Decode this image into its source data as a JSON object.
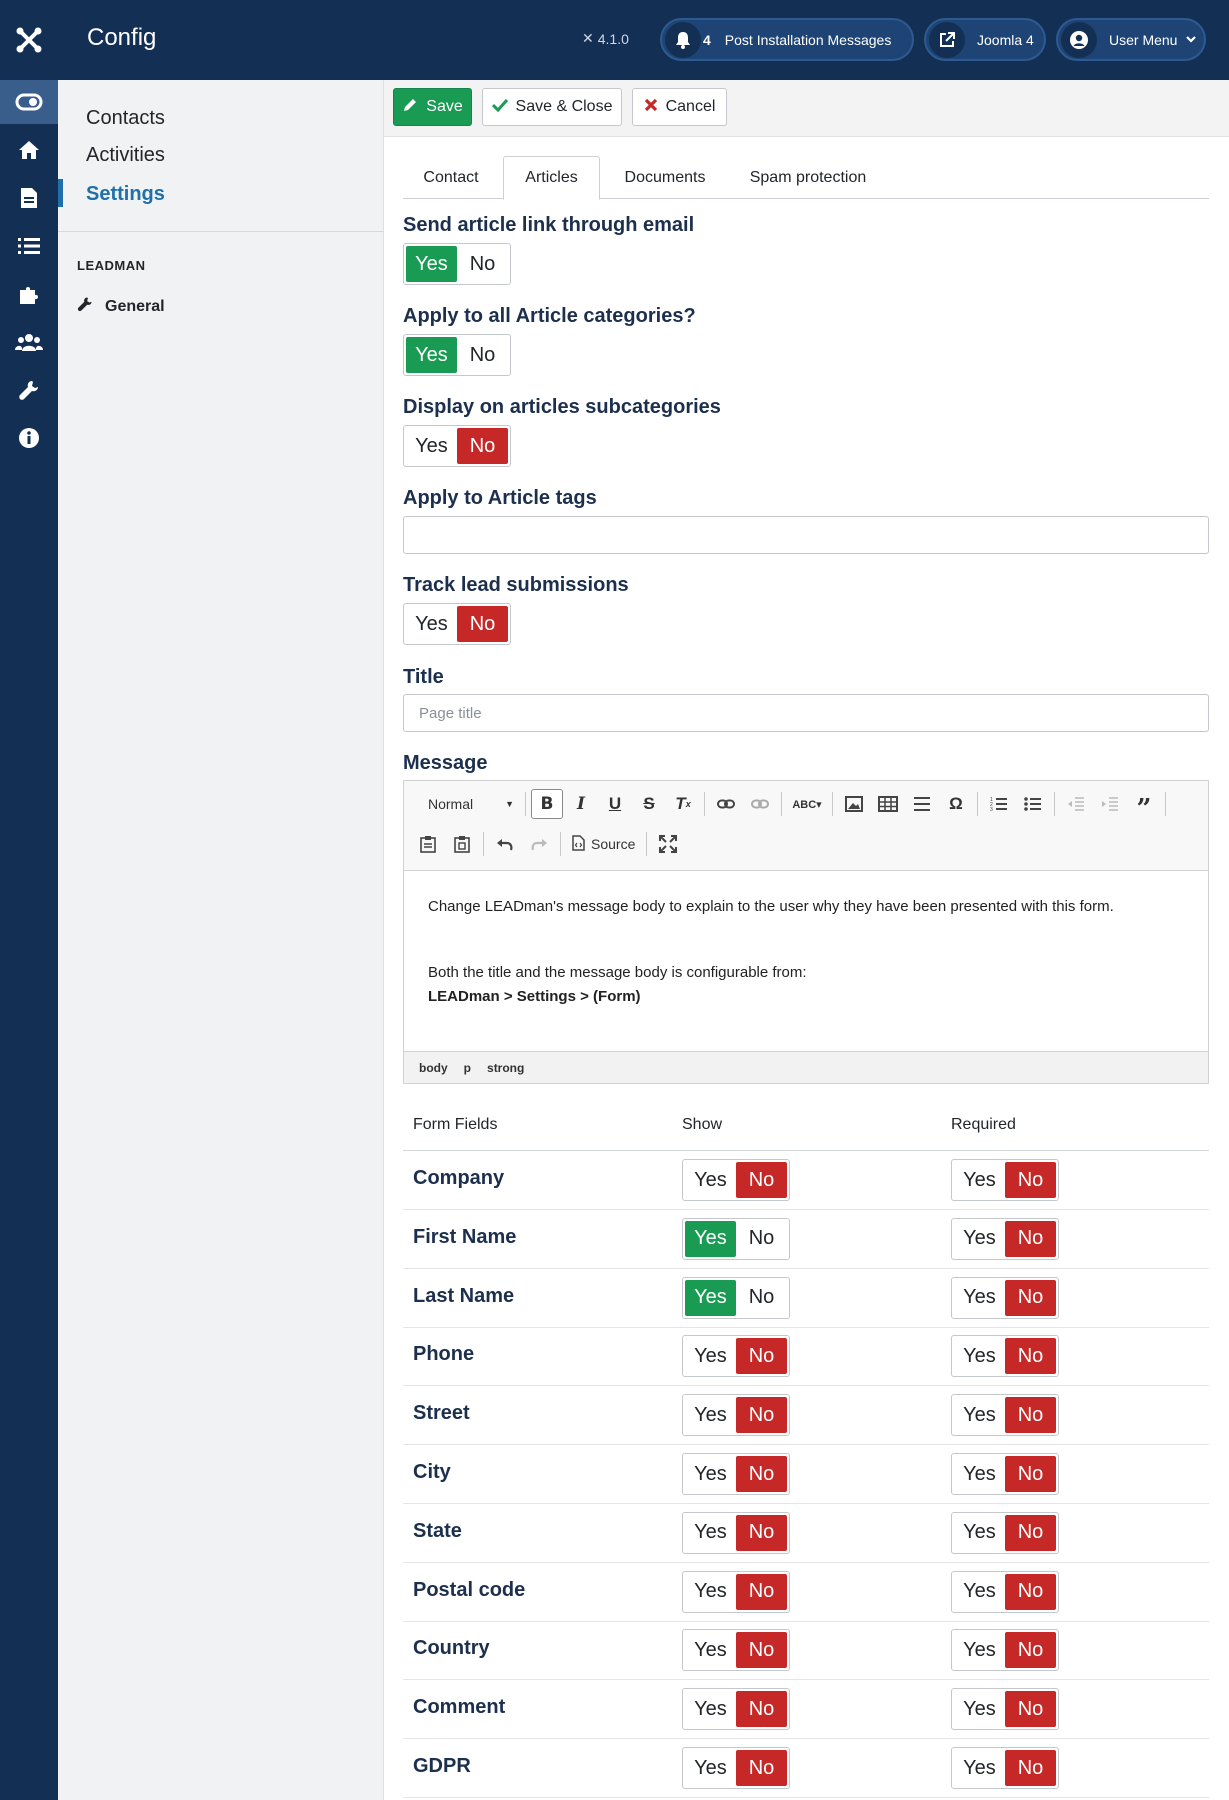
{
  "header": {
    "title": "Config",
    "version": "4.1.0",
    "messages_count": "4",
    "messages_label": "Post Installation Messages",
    "site_label": "Joomla 4",
    "user_label": "User Menu"
  },
  "submenu": {
    "items": [
      "Contacts",
      "Activities",
      "Settings"
    ],
    "section_heading": "LEADMAN",
    "general_label": "General"
  },
  "toolbar": {
    "save_label": "Save",
    "save_close_label": "Save & Close",
    "cancel_label": "Cancel"
  },
  "tabs": [
    "Contact",
    "Articles",
    "Documents",
    "Spam protection"
  ],
  "active_tab": "Articles",
  "fields": {
    "send_link": {
      "label": "Send article link through email",
      "value": "Yes"
    },
    "apply_all": {
      "label": "Apply to all Article categories?",
      "value": "Yes"
    },
    "subcategories": {
      "label": "Display on articles subcategories",
      "value": "No"
    },
    "tags": {
      "label": "Apply to Article tags",
      "value": ""
    },
    "track": {
      "label": "Track lead submissions",
      "value": "No"
    },
    "title": {
      "label": "Title",
      "placeholder": "Page title"
    },
    "message": {
      "label": "Message"
    }
  },
  "switch_labels": {
    "yes": "Yes",
    "no": "No"
  },
  "editor": {
    "format": "Normal",
    "source_label": "Source",
    "body_line1": "Change LEADman's message body to explain to the user why they have been presented with this form.",
    "body_line2": "Both the title and the message body is configurable from:",
    "body_line3": "LEADman > Settings > (Form)",
    "path": [
      "body",
      "p",
      "strong"
    ]
  },
  "form_fields": {
    "headers": {
      "field": "Form Fields",
      "show": "Show",
      "required": "Required"
    },
    "rows": [
      {
        "name": "Company",
        "show": "No",
        "required": "No"
      },
      {
        "name": "First Name",
        "show": "Yes",
        "required": "No"
      },
      {
        "name": "Last Name",
        "show": "Yes",
        "required": "No"
      },
      {
        "name": "Phone",
        "show": "No",
        "required": "No"
      },
      {
        "name": "Street",
        "show": "No",
        "required": "No"
      },
      {
        "name": "City",
        "show": "No",
        "required": "No"
      },
      {
        "name": "State",
        "show": "No",
        "required": "No"
      },
      {
        "name": "Postal code",
        "show": "No",
        "required": "No"
      },
      {
        "name": "Country",
        "show": "No",
        "required": "No"
      },
      {
        "name": "Comment",
        "show": "No",
        "required": "No"
      },
      {
        "name": "GDPR",
        "show": "No",
        "required": "No"
      }
    ]
  },
  "colors": {
    "header_bg": "#132f53",
    "yes_active": "#1a9b54",
    "no_active": "#c52827",
    "link_active": "#1e6faa"
  }
}
